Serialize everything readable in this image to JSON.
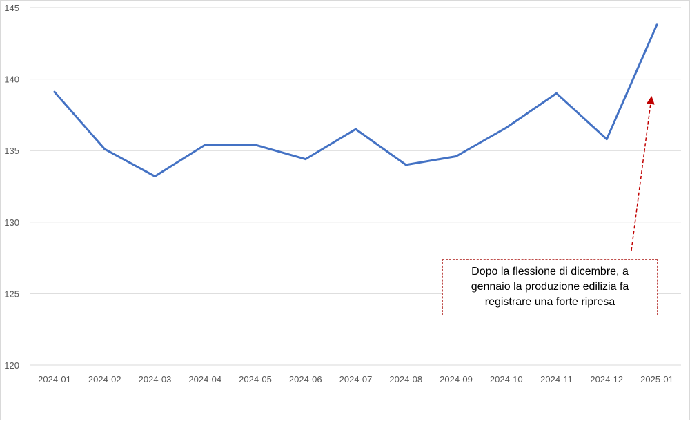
{
  "chart_data": {
    "type": "line",
    "title": "",
    "xlabel": "",
    "ylabel": "",
    "categories": [
      "2024-01",
      "2024-02",
      "2024-03",
      "2024-04",
      "2024-05",
      "2024-06",
      "2024-07",
      "2024-08",
      "2024-09",
      "2024-10",
      "2024-11",
      "2024-12",
      "2025-01"
    ],
    "series": [
      {
        "color": "#4472c4",
        "values": [
          139.1,
          135.1,
          133.2,
          135.4,
          135.4,
          134.4,
          136.5,
          134.0,
          134.6,
          136.6,
          139.0,
          135.8,
          143.8
        ]
      }
    ],
    "ylim": [
      120,
      145
    ],
    "yticks": [
      120,
      125,
      130,
      135,
      140,
      145
    ],
    "grid": true,
    "legend": "none",
    "annotation": {
      "text": "Dopo la flessione di dicembre, a gennaio la produzione edilizia fa registrare una forte ripresa",
      "color": "#c00000"
    }
  }
}
